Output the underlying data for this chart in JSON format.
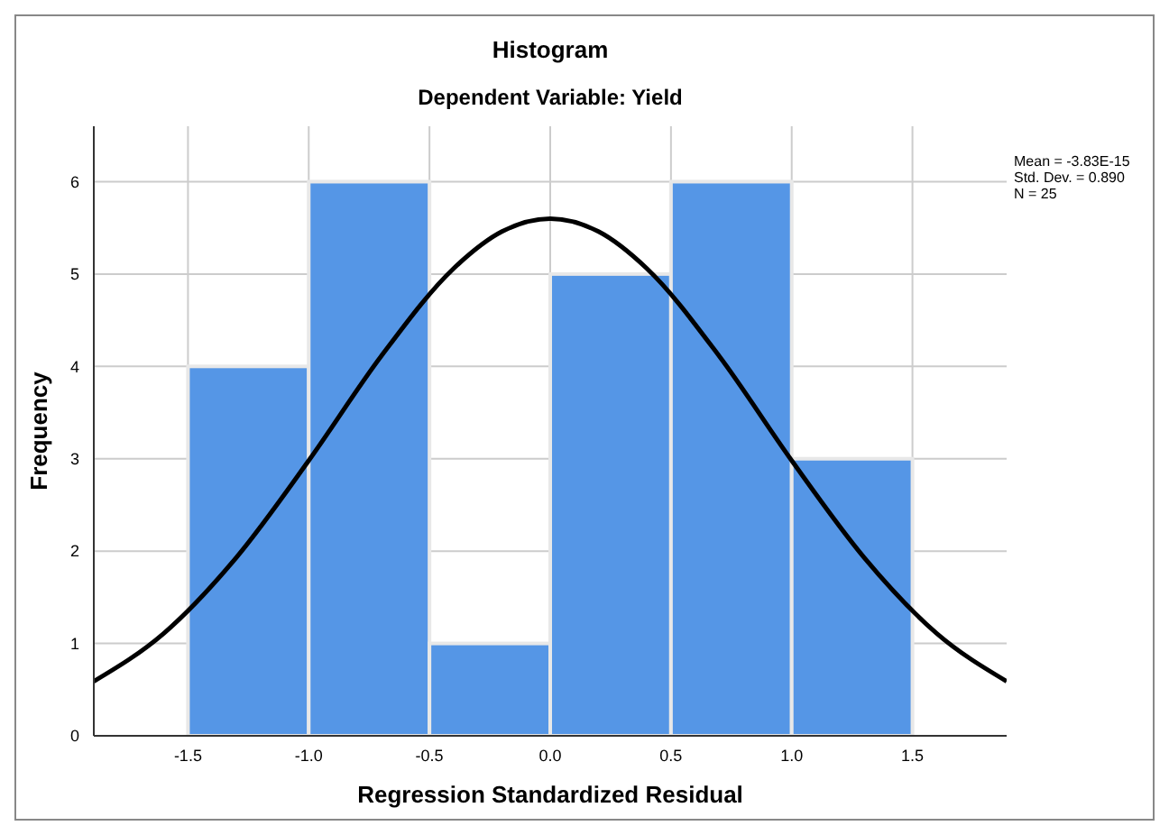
{
  "chart_data": {
    "type": "histogram",
    "title": "Histogram",
    "subtitle": "Dependent Variable: Yield",
    "xlabel": "Regression Standardized Residual",
    "ylabel": "Frequency",
    "bins": [
      -1.5,
      -1.0,
      -0.5,
      0.0,
      0.5,
      1.0,
      1.5
    ],
    "values": [
      4,
      6,
      1,
      5,
      6,
      3
    ],
    "color": "#5596e6",
    "series": [
      {
        "type": "line",
        "color": "#000000",
        "x": [
          -1.89,
          -1.6,
          -1.3,
          -1.0,
          -0.7,
          -0.4,
          -0.2,
          0.0,
          0.2,
          0.4,
          0.7,
          1.0,
          1.3,
          1.6,
          1.89
        ],
        "values": [
          0.59,
          1.11,
          1.93,
          2.98,
          4.11,
          5.06,
          5.46,
          5.6,
          5.46,
          5.06,
          4.11,
          2.98,
          1.93,
          1.11,
          0.59
        ]
      }
    ],
    "xlim": [
      -1.89,
      1.89
    ],
    "xticks": [
      {
        "value": -1.5,
        "label": "-1.5"
      },
      {
        "value": -1.0,
        "label": "-1.0"
      },
      {
        "value": -0.5,
        "label": "-0.5"
      },
      {
        "value": 0,
        "label": "0.0"
      },
      {
        "value": 0.5,
        "label": "0.5"
      },
      {
        "value": 1.0,
        "label": "1.0"
      },
      {
        "value": 1.5,
        "label": "1.5"
      }
    ],
    "ylim": [
      0,
      6.6
    ],
    "yticks": [
      0,
      1,
      2,
      3,
      4,
      5,
      6
    ],
    "grid": true,
    "annotations": [
      "Mean = -3.83E-15",
      "Std. Dev. = 0.890",
      "N = 25"
    ]
  }
}
